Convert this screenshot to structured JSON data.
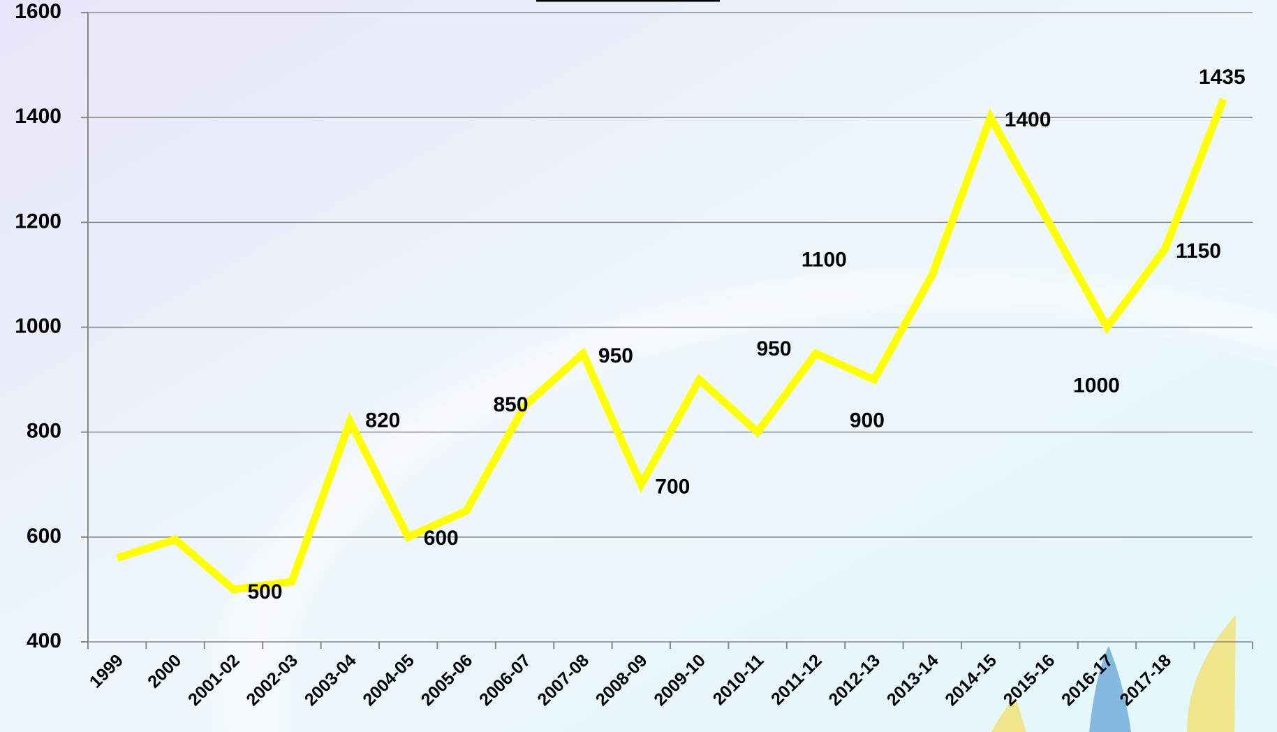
{
  "chart_data": {
    "type": "line",
    "categories": [
      "1999",
      "2000",
      "2001-02",
      "2002-03",
      "2003-04",
      "2004-05",
      "2005-06",
      "2006-07",
      "2007-08",
      "2008-09",
      "2009-10",
      "2010-11",
      "2011-12",
      "2012-13",
      "2013-14",
      "2014-15",
      "2015-16",
      "2016-17",
      "2017-18",
      null
    ],
    "series": [
      {
        "color": "#ffff00",
        "values": [
          560,
          595,
          500,
          515,
          820,
          600,
          650,
          850,
          950,
          700,
          900,
          800,
          950,
          900,
          1100,
          1400,
          1200,
          1000,
          1150,
          1435
        ],
        "value_labels": [
          null,
          null,
          "500",
          null,
          "820",
          "600",
          null,
          "850",
          "950",
          "700",
          null,
          null,
          "950",
          "900",
          "1100",
          "1400",
          null,
          "1000",
          "1150",
          "1435"
        ]
      }
    ],
    "ylim": [
      400,
      1600
    ],
    "yticks": [
      400,
      600,
      800,
      1000,
      1200,
      1400,
      1600
    ],
    "grid": true
  }
}
